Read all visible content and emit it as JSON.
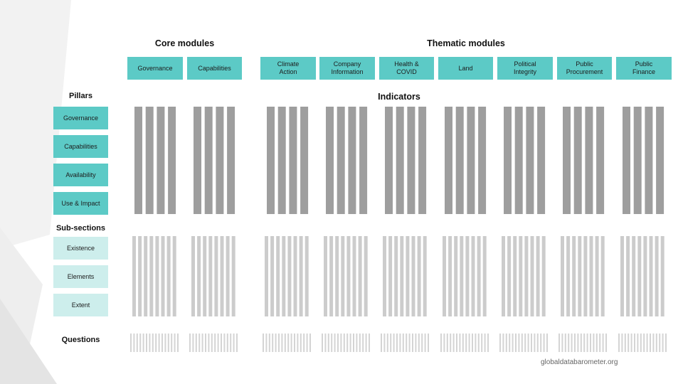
{
  "headings": {
    "core": "Core modules",
    "thematic": "Thematic modules",
    "indicators": "Indicators"
  },
  "modules": {
    "core": [
      "Governance",
      "Capabilities"
    ],
    "thematic": [
      "Climate\nAction",
      "Company\nInformation",
      "Health &\nCOVID",
      "Land",
      "Political\nIntegrity",
      "Public\nProcurement",
      "Public\nFinance"
    ]
  },
  "left": {
    "pillars_label": "Pillars",
    "pillars": [
      "Governance",
      "Capabilities",
      "Availability",
      "Use & Impact"
    ],
    "subsections_label": "Sub-sections",
    "subsections": [
      "Existence",
      "Elements",
      "Extent"
    ],
    "questions_label": "Questions"
  },
  "bar_counts": {
    "indicators_per_module": 4,
    "subsections_per_module": 8,
    "questions_per_module": 16
  },
  "colors": {
    "module": "#5ccac6",
    "subsection": "#cdeeec",
    "indicator_bar": "#9e9e9e",
    "subsection_bar": "#cccccc",
    "question_bar": "#d4d4d4"
  },
  "footer": "globaldatabarometer.org"
}
